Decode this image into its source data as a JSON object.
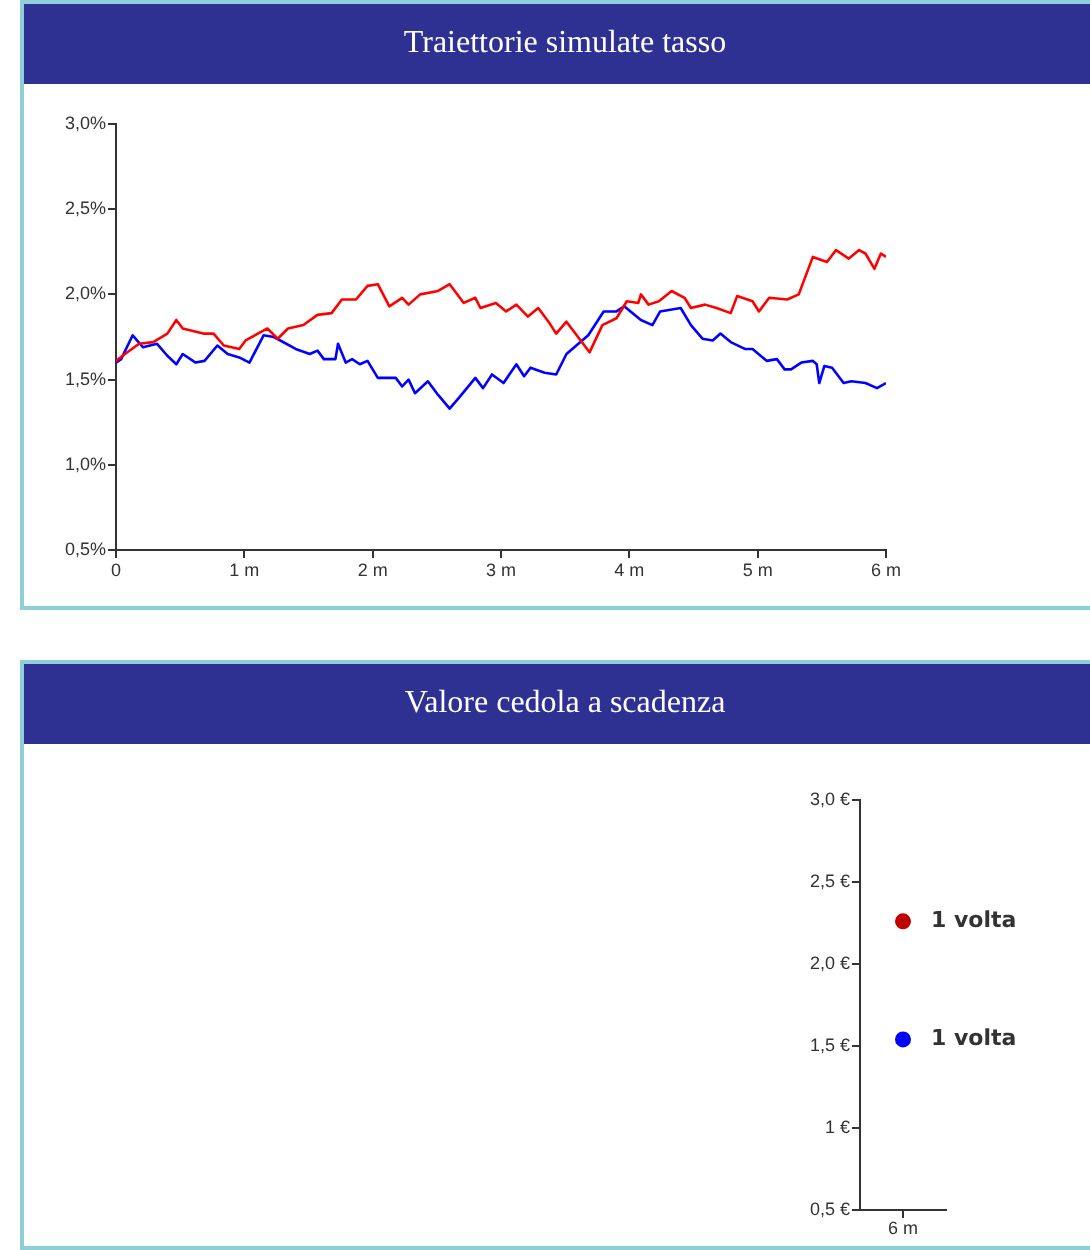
{
  "chart_data": [
    {
      "type": "line",
      "title": "Traiettorie simulate tasso",
      "xlim": [
        0,
        6
      ],
      "xticks": [
        0,
        {
          "value": 1,
          "label": "1 m"
        },
        {
          "value": 2,
          "label": "2 m"
        },
        {
          "value": 3,
          "label": "3 m"
        },
        {
          "value": 4,
          "label": "4 m"
        },
        {
          "value": 5,
          "label": "5 m"
        },
        {
          "value": 6,
          "label": "6 m"
        }
      ],
      "ylim": [
        0.5,
        3.0
      ],
      "yticks": [
        {
          "value": 0.5,
          "label": "0,5%"
        },
        {
          "value": 1.0,
          "label": "1,0%"
        },
        {
          "value": 1.5,
          "label": "1,5%"
        },
        {
          "value": 2.0,
          "label": "2,0%"
        },
        {
          "value": 2.5,
          "label": "2,5%"
        },
        {
          "value": 3.0,
          "label": "3,0%"
        }
      ],
      "grid": false,
      "legend": false,
      "marker": "none",
      "line_style": "solid",
      "series": [
        {
          "color": "#ff0000",
          "x": [
            0,
            0.07,
            0.18,
            0.29,
            0.4,
            0.47,
            0.52,
            0.68,
            0.76,
            0.84,
            0.96,
            1.01,
            1.18,
            1.26,
            1.34,
            1.46,
            1.57,
            1.68,
            1.76,
            1.87,
            1.96,
            2.04,
            2.13,
            2.23,
            2.28,
            2.37,
            2.51,
            2.6,
            2.71,
            2.8,
            2.84,
            2.96,
            3.04,
            3.12,
            3.21,
            3.29,
            3.37,
            3.43,
            3.51,
            3.59,
            3.69,
            3.79,
            3.9,
            3.98,
            4.07,
            4.09,
            4.15,
            4.23,
            4.33,
            4.43,
            4.48,
            4.59,
            4.68,
            4.79,
            4.84,
            4.96,
            5.01,
            5.09,
            5.23,
            5.32,
            5.43,
            5.54,
            5.61,
            5.71,
            5.79,
            5.84,
            5.91,
            5.96,
            6
          ],
          "values": [
            1.61,
            1.65,
            1.71,
            1.72,
            1.77,
            1.85,
            1.8,
            1.77,
            1.77,
            1.7,
            1.68,
            1.73,
            1.8,
            1.74,
            1.8,
            1.82,
            1.88,
            1.89,
            1.97,
            1.97,
            2.05,
            2.06,
            1.93,
            1.98,
            1.94,
            2.0,
            2.02,
            2.06,
            1.95,
            1.98,
            1.92,
            1.95,
            1.9,
            1.94,
            1.87,
            1.92,
            1.84,
            1.77,
            1.84,
            1.76,
            1.66,
            1.82,
            1.86,
            1.96,
            1.95,
            2.0,
            1.94,
            1.96,
            2.02,
            1.98,
            1.92,
            1.94,
            1.92,
            1.89,
            1.99,
            1.96,
            1.9,
            1.98,
            1.97,
            2.0,
            2.22,
            2.19,
            2.26,
            2.21,
            2.26,
            2.24,
            2.15,
            2.24,
            2.22
          ]
        },
        {
          "color": "#0000ff",
          "x": [
            0,
            0.04,
            0.13,
            0.21,
            0.32,
            0.4,
            0.47,
            0.52,
            0.62,
            0.69,
            0.79,
            0.87,
            0.96,
            1.04,
            1.15,
            1.23,
            1.4,
            1.51,
            1.57,
            1.62,
            1.71,
            1.73,
            1.79,
            1.84,
            1.9,
            1.96,
            2.04,
            2.18,
            2.23,
            2.28,
            2.33,
            2.43,
            2.51,
            2.6,
            2.68,
            2.8,
            2.86,
            2.93,
            3.02,
            3.12,
            3.18,
            3.23,
            3.34,
            3.43,
            3.51,
            3.68,
            3.8,
            3.9,
            3.96,
            4.09,
            4.18,
            4.24,
            4.4,
            4.48,
            4.57,
            4.65,
            4.71,
            4.79,
            4.9,
            4.96,
            5.07,
            5.15,
            5.21,
            5.26,
            5.34,
            5.43,
            5.46,
            5.48,
            5.52,
            5.58,
            5.67,
            5.73,
            5.84,
            5.93,
            6
          ],
          "values": [
            1.6,
            1.62,
            1.76,
            1.69,
            1.71,
            1.64,
            1.59,
            1.65,
            1.6,
            1.61,
            1.7,
            1.65,
            1.63,
            1.6,
            1.76,
            1.75,
            1.68,
            1.65,
            1.67,
            1.62,
            1.62,
            1.71,
            1.6,
            1.62,
            1.59,
            1.61,
            1.51,
            1.51,
            1.46,
            1.5,
            1.42,
            1.49,
            1.41,
            1.33,
            1.4,
            1.51,
            1.45,
            1.53,
            1.48,
            1.59,
            1.52,
            1.57,
            1.54,
            1.53,
            1.65,
            1.76,
            1.9,
            1.9,
            1.93,
            1.85,
            1.82,
            1.9,
            1.92,
            1.82,
            1.74,
            1.73,
            1.77,
            1.72,
            1.68,
            1.68,
            1.61,
            1.62,
            1.56,
            1.56,
            1.6,
            1.61,
            1.59,
            1.48,
            1.58,
            1.57,
            1.48,
            1.49,
            1.48,
            1.45,
            1.48
          ]
        }
      ]
    },
    {
      "type": "scatter",
      "title": "Valore cedola a scadenza",
      "categories": [
        "6 m"
      ],
      "ylim": [
        0.5,
        3.0
      ],
      "yticks": [
        {
          "value": 0.5,
          "label": "0,5 €"
        },
        {
          "value": 1,
          "label": "1 €"
        },
        {
          "value": 1.5,
          "label": "1,5 €"
        },
        {
          "value": 2.0,
          "label": "2,0 €"
        },
        {
          "value": 2.5,
          "label": "2,5 €"
        },
        {
          "value": 3.0,
          "label": "3,0 €"
        }
      ],
      "grid": false,
      "legend": false,
      "marker": "circle",
      "series": [
        {
          "color": "#c00000",
          "values": [
            2.26
          ]
        },
        {
          "color": "#0000ff",
          "values": [
            1.54
          ]
        }
      ],
      "annotations": [
        {
          "text": "1 volta",
          "x": "6 m",
          "y": 2.26
        },
        {
          "text": "1 volta",
          "x": "6 m",
          "y": 1.54
        }
      ]
    }
  ]
}
